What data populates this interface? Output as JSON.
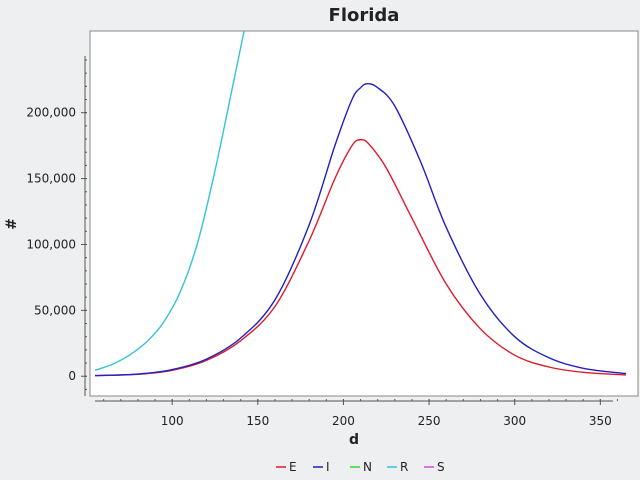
{
  "chart_data": {
    "type": "line",
    "title": "Florida",
    "xlabel": "d",
    "ylabel": "#",
    "xlim": [
      52,
      372
    ],
    "ylim": [
      -15000,
      262000
    ],
    "xticks": [
      100,
      150,
      200,
      250,
      300,
      350
    ],
    "yticks": [
      0,
      50000,
      100000,
      150000,
      200000
    ],
    "ytick_labels": [
      "0",
      "50,000",
      "100,000",
      "150,000",
      "200,000"
    ],
    "grid": false,
    "legend_position": "bottom",
    "series": [
      {
        "name": "E",
        "color": "#e0192c",
        "x": [
          55,
          80,
          100,
          120,
          140,
          160,
          180,
          195,
          205,
          210,
          215,
          225,
          240,
          260,
          280,
          300,
          320,
          340,
          365
        ],
        "y": [
          500,
          1500,
          4500,
          12000,
          27000,
          53000,
          103000,
          150000,
          175000,
          179500,
          176000,
          158000,
          120000,
          70000,
          36000,
          16000,
          7000,
          3000,
          1000
        ]
      },
      {
        "name": "I",
        "color": "#1f1fc4",
        "x": [
          55,
          80,
          100,
          120,
          140,
          160,
          180,
          195,
          205,
          210,
          214,
          220,
          230,
          245,
          260,
          280,
          300,
          320,
          340,
          365
        ],
        "y": [
          500,
          1600,
          5000,
          13000,
          29000,
          58000,
          115000,
          175000,
          210000,
          219000,
          222000,
          219000,
          205000,
          163000,
          113000,
          62000,
          30000,
          14000,
          6000,
          2000
        ]
      },
      {
        "name": "N",
        "color": "#34d634",
        "x": [],
        "y": []
      },
      {
        "name": "R",
        "color": "#35c2db",
        "x": [
          55,
          65,
          75,
          85,
          95,
          105,
          115,
          125,
          135,
          142
        ],
        "y": [
          4500,
          9000,
          16000,
          26000,
          41000,
          65000,
          102000,
          156000,
          218000,
          262000
        ]
      },
      {
        "name": "S",
        "color": "#d64ad6",
        "x": [],
        "y": []
      }
    ]
  }
}
